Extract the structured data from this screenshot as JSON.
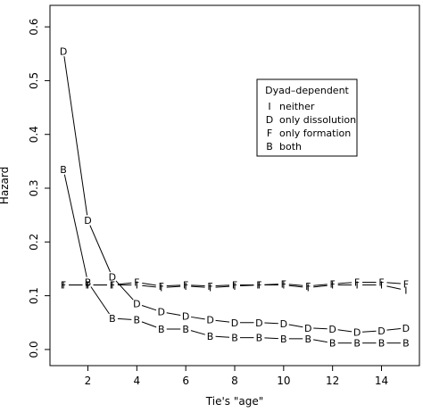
{
  "chart_data": {
    "type": "line",
    "xlabel": "Tie's \"age\"",
    "ylabel": "Hazard",
    "xlim": [
      0.45,
      15.55
    ],
    "ylim": [
      -0.03,
      0.64
    ],
    "xticks": [
      2,
      4,
      6,
      8,
      10,
      12,
      14
    ],
    "yticks": [
      0.0,
      0.1,
      0.2,
      0.3,
      0.4,
      0.5,
      0.6
    ],
    "ytick_labels": [
      "0.0",
      "0.1",
      "0.2",
      "0.3",
      "0.4",
      "0.5",
      "0.6"
    ],
    "grid": false,
    "legend": {
      "title": "Dyad–dependent",
      "placement": "center-right",
      "entries": [
        {
          "symbol": "I",
          "label": "neither"
        },
        {
          "symbol": "D",
          "label": "only dissolution"
        },
        {
          "symbol": "F",
          "label": "only formation"
        },
        {
          "symbol": "B",
          "label": "both"
        }
      ]
    },
    "x": [
      1,
      2,
      3,
      4,
      5,
      6,
      7,
      8,
      9,
      10,
      11,
      12,
      13,
      14,
      15
    ],
    "series": [
      {
        "symbol": "I",
        "values": [
          0.12,
          0.12,
          0.12,
          0.12,
          0.115,
          0.118,
          0.115,
          0.118,
          0.12,
          0.12,
          0.115,
          0.12,
          0.12,
          0.12,
          0.11
        ]
      },
      {
        "symbol": "D",
        "values": [
          0.555,
          0.24,
          0.135,
          0.085,
          0.07,
          0.062,
          0.055,
          0.05,
          0.05,
          0.048,
          0.04,
          0.038,
          0.032,
          0.035,
          0.04
        ]
      },
      {
        "symbol": "F",
        "values": [
          0.12,
          0.12,
          0.12,
          0.125,
          0.118,
          0.12,
          0.118,
          0.12,
          0.12,
          0.122,
          0.118,
          0.122,
          0.125,
          0.125,
          0.122
        ]
      },
      {
        "symbol": "B",
        "values": [
          0.335,
          0.125,
          0.058,
          0.055,
          0.038,
          0.038,
          0.025,
          0.022,
          0.022,
          0.02,
          0.02,
          0.012,
          0.012,
          0.012,
          0.012
        ]
      }
    ]
  }
}
